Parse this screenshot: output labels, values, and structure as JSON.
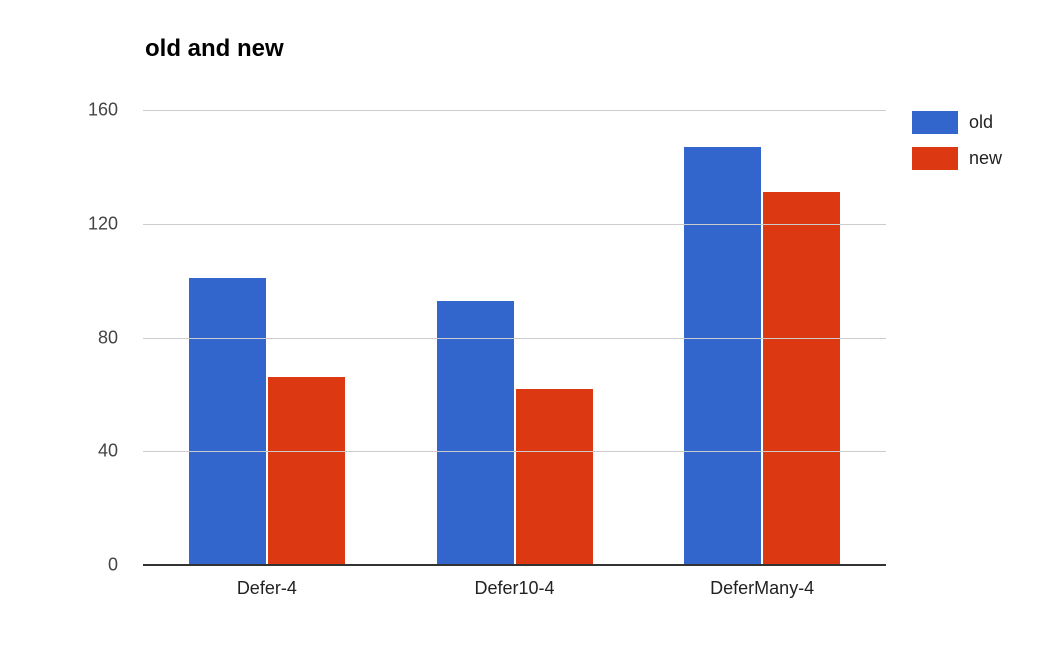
{
  "chart_data": {
    "type": "bar",
    "title": "old and new",
    "categories": [
      "Defer-4",
      "Defer10-4",
      "DeferMany-4"
    ],
    "series": [
      {
        "name": "old",
        "color": "#3366CC",
        "values": [
          101,
          93,
          147
        ]
      },
      {
        "name": "new",
        "color": "#DC3912",
        "values": [
          66,
          62,
          131
        ]
      }
    ],
    "xlabel": "",
    "ylabel": "",
    "ylim": [
      0,
      160
    ],
    "yticks": [
      0,
      40,
      80,
      120,
      160
    ],
    "grid": true,
    "legend_position": "right",
    "colors": {
      "background": "#ffffff",
      "title": "#000000",
      "gridline": "#cccccc",
      "axis_line": "#333333",
      "y_tick_label": "#444444",
      "x_tick_label": "#222222",
      "legend_label": "#222222"
    }
  }
}
